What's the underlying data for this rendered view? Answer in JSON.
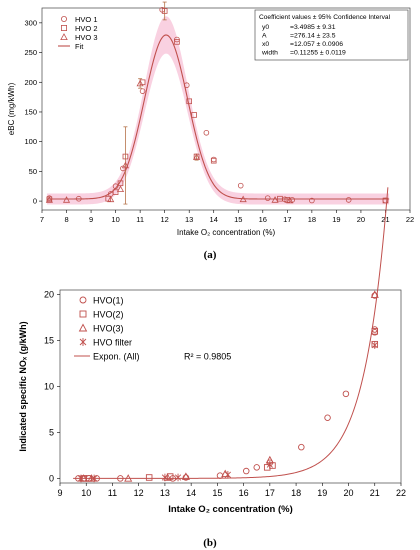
{
  "figure": {
    "panel_a_label": "(a)",
    "panel_b_label": "(b)"
  },
  "colors": {
    "series": "#c0504d",
    "band": "#f7c6d9",
    "axis": "#000000"
  },
  "chart_data": [
    {
      "type": "scatter",
      "panel": "a",
      "xlabel": "Intake O₂ concentration (%)",
      "ylabel": "eBC (mg/kWh)",
      "xlim": [
        7,
        22
      ],
      "ylim": [
        -15,
        325
      ],
      "xticks": [
        7,
        8,
        9,
        10,
        11,
        12,
        13,
        14,
        15,
        16,
        17,
        18,
        19,
        20,
        21,
        22
      ],
      "yticks": [
        0,
        50,
        100,
        150,
        200,
        250,
        300
      ],
      "grid": false,
      "legend_position": "top-left",
      "series": [
        {
          "name": "HVO 1",
          "marker": "circle",
          "points": [
            [
              7.3,
              5
            ],
            [
              8.5,
              4
            ],
            [
              9.8,
              12
            ],
            [
              10.0,
              25
            ],
            [
              10.3,
              55
            ],
            [
              11.1,
              185
            ],
            [
              11.9,
              322
            ],
            [
              12.5,
              272
            ],
            [
              12.9,
              195
            ],
            [
              13.7,
              115
            ],
            [
              14.0,
              70
            ],
            [
              15.1,
              26
            ],
            [
              16.2,
              5
            ],
            [
              16.9,
              3
            ],
            [
              17.2,
              2
            ],
            [
              18.0,
              1
            ],
            [
              19.5,
              2
            ],
            [
              21.0,
              1
            ]
          ]
        },
        {
          "name": "HVO 2",
          "marker": "square",
          "points": [
            [
              7.3,
              3
            ],
            [
              9.7,
              4
            ],
            [
              10.0,
              15
            ],
            [
              10.2,
              30
            ],
            [
              10.4,
              75
            ],
            [
              11.1,
              200
            ],
            [
              12.0,
              320
            ],
            [
              12.5,
              268
            ],
            [
              13.0,
              168
            ],
            [
              13.2,
              145
            ],
            [
              13.3,
              75
            ],
            [
              14.0,
              68
            ],
            [
              16.7,
              4
            ],
            [
              17.0,
              2
            ],
            [
              21.0,
              1
            ]
          ]
        },
        {
          "name": "HVO 3",
          "marker": "triangle",
          "points": [
            [
              7.3,
              2
            ],
            [
              8.0,
              2
            ],
            [
              9.8,
              3
            ],
            [
              10.2,
              20
            ],
            [
              10.4,
              60
            ],
            [
              11.0,
              198
            ],
            [
              13.3,
              74
            ],
            [
              15.2,
              3
            ],
            [
              16.5,
              2
            ],
            [
              17.1,
              1
            ]
          ]
        }
      ],
      "error_bars": [
        [
          10.4,
          60,
          65
        ],
        [
          11.0,
          198,
          8
        ],
        [
          13.3,
          74,
          5
        ],
        [
          12.0,
          320,
          15
        ]
      ],
      "fit": {
        "name": "Fit",
        "model": "gaussian",
        "y0": 3.4985,
        "A": 276.14,
        "x0": 12.057,
        "width": 0.11255,
        "band": 9.3
      },
      "info_box": {
        "title": "Coefficient values ± 95% Confidence Interval",
        "rows": [
          [
            "y0",
            "=3.4985 ± 9.31"
          ],
          [
            "A",
            "=276.14 ± 23.5"
          ],
          [
            "x0",
            "=12.057 ± 0.0906"
          ],
          [
            "width",
            "=0.11255 ± 0.0119"
          ]
        ]
      }
    },
    {
      "type": "scatter",
      "panel": "b",
      "xlabel": "Intake O₂ concentration (%)",
      "ylabel": "Indicated specific NOₓ (g/kWh)",
      "xlim": [
        9,
        22
      ],
      "ylim": [
        -0.5,
        20.5
      ],
      "xticks": [
        9,
        10,
        11,
        12,
        13,
        14,
        15,
        16,
        17,
        18,
        19,
        20,
        21,
        22
      ],
      "yticks": [
        0,
        5,
        10,
        15,
        20
      ],
      "grid": false,
      "legend_position": "top-left",
      "series": [
        {
          "name": "HVO(1)",
          "marker": "circle",
          "points": [
            [
              9.7,
              0
            ],
            [
              9.9,
              0
            ],
            [
              10.1,
              0
            ],
            [
              10.4,
              0
            ],
            [
              11.3,
              0
            ],
            [
              13.3,
              0
            ],
            [
              13.8,
              0.1
            ],
            [
              15.1,
              0.3
            ],
            [
              16.1,
              0.8
            ],
            [
              16.5,
              1.2
            ],
            [
              17.0,
              1.7
            ],
            [
              18.2,
              3.4
            ],
            [
              19.2,
              6.6
            ],
            [
              19.9,
              9.2
            ],
            [
              21.0,
              15.9
            ],
            [
              21.0,
              16.2
            ],
            [
              21.0,
              19.9
            ]
          ]
        },
        {
          "name": "HVO(2)",
          "marker": "square",
          "points": [
            [
              9.9,
              0
            ],
            [
              10.1,
              0
            ],
            [
              12.4,
              0.1
            ],
            [
              13.2,
              0.2
            ],
            [
              16.9,
              1.2
            ],
            [
              17.1,
              1.4
            ],
            [
              21.0,
              14.6
            ],
            [
              21.0,
              16.0
            ]
          ]
        },
        {
          "name": "HVO(3)",
          "marker": "triangle",
          "points": [
            [
              9.9,
              0
            ],
            [
              10.2,
              0
            ],
            [
              11.6,
              0
            ],
            [
              13.1,
              0.1
            ],
            [
              13.8,
              0.2
            ],
            [
              15.3,
              0.5
            ],
            [
              17.0,
              2.0
            ],
            [
              21.0,
              20.0
            ]
          ]
        },
        {
          "name": "HVO filter",
          "marker": "star",
          "points": [
            [
              9.8,
              0
            ],
            [
              10.3,
              0
            ],
            [
              13.0,
              0.1
            ],
            [
              13.5,
              0.1
            ],
            [
              15.4,
              0.4
            ],
            [
              17.0,
              1.5
            ],
            [
              21.0,
              14.5
            ]
          ]
        }
      ],
      "fit": {
        "name": "Expon. (All)",
        "model": "exponential",
        "a": 1.283e-09,
        "b": 1.113,
        "x_range": [
          9.5,
          21.5
        ],
        "r2_label": "R² = 0.9805"
      }
    }
  ]
}
